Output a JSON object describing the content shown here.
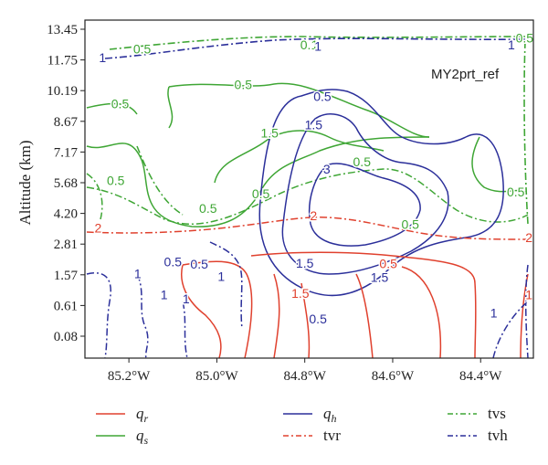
{
  "chart_data": {
    "type": "contour",
    "annotation": "MY2prt_ref",
    "ylabel": "Altitude (km)",
    "xlabel": "",
    "x_ticks": [
      "85.2°W",
      "85.0°W",
      "84.8°W",
      "84.6°W",
      "84.4°W"
    ],
    "x_tick_values": [
      -85.2,
      -85.0,
      -84.8,
      -84.6,
      -84.4
    ],
    "xlim": [
      -85.3,
      -84.28
    ],
    "y_ticks": [
      "13.45",
      "11.75",
      "10.19",
      "8.67",
      "7.17",
      "5.68",
      "4.20",
      "2.81",
      "1.57",
      "0.61",
      "0.08"
    ],
    "y_tick_values": [
      13.45,
      11.75,
      10.19,
      8.67,
      7.17,
      5.68,
      4.2,
      2.81,
      1.57,
      0.61,
      0.08
    ],
    "y_scale": "model levels (unevenly spaced)",
    "colors": {
      "qr": "#e0412e",
      "qs": "#3fa635",
      "qh": "#2b2f9a",
      "tvr": "#e0412e",
      "tvs": "#3fa635",
      "tvh": "#2b2f9a"
    },
    "legend": [
      {
        "key": "qr",
        "label": "q",
        "sub": "r",
        "style": "solid",
        "italic": true
      },
      {
        "key": "qs",
        "label": "q",
        "sub": "s",
        "style": "solid",
        "italic": true
      },
      {
        "key": "qh",
        "label": "q",
        "sub": "h",
        "style": "solid",
        "italic": true
      },
      {
        "key": "tvr",
        "label": "tvr",
        "sub": "",
        "style": "dashdot",
        "italic": false
      },
      {
        "key": "tvs",
        "label": "tvs",
        "sub": "",
        "style": "dashdot",
        "italic": false
      },
      {
        "key": "tvh",
        "label": "tvh",
        "sub": "",
        "style": "dashdot",
        "italic": false
      }
    ],
    "contour_labels": [
      {
        "text": "0.5",
        "x": -85.17,
        "y": 12.35,
        "series": "tvs"
      },
      {
        "text": "0.5",
        "x": -85.22,
        "y": 9.55,
        "series": "tvs"
      },
      {
        "text": "0.5",
        "x": -84.9,
        "y": 5.15,
        "series": "tvs"
      },
      {
        "text": "0.5",
        "x": -85.02,
        "y": 4.45,
        "series": "tvs"
      },
      {
        "text": "0.5",
        "x": -84.67,
        "y": 6.7,
        "series": "tvs"
      },
      {
        "text": "0.5",
        "x": -84.56,
        "y": 3.7,
        "series": "tvs"
      },
      {
        "text": "0.5",
        "x": -84.32,
        "y": 5.25,
        "series": "tvs"
      },
      {
        "text": "0.5",
        "x": -85.23,
        "y": 5.8,
        "series": "tvs"
      },
      {
        "text": "0.5",
        "x": -84.94,
        "y": 10.5,
        "series": "qs"
      },
      {
        "text": "1.5",
        "x": -84.88,
        "y": 8.1,
        "series": "qs"
      },
      {
        "text": "0.1",
        "x": -84.79,
        "y": 12.6,
        "series": "tvs"
      },
      {
        "text": "1",
        "x": -84.77,
        "y": 12.52,
        "series": "tvh"
      },
      {
        "text": "1",
        "x": -85.26,
        "y": 11.88,
        "series": "tvh"
      },
      {
        "text": "1",
        "x": -84.33,
        "y": 12.6,
        "series": "tvh"
      },
      {
        "text": "0.5",
        "x": -84.3,
        "y": 12.98,
        "series": "tvs"
      },
      {
        "text": "0.5",
        "x": -84.76,
        "y": 9.9,
        "series": "qh"
      },
      {
        "text": "1.5",
        "x": -84.78,
        "y": 8.5,
        "series": "qh"
      },
      {
        "text": "3",
        "x": -84.75,
        "y": 6.35,
        "series": "qh"
      },
      {
        "text": "1.5",
        "x": -84.8,
        "y": 2.05,
        "series": "qh"
      },
      {
        "text": "1.5",
        "x": -84.63,
        "y": 1.5,
        "series": "qh"
      },
      {
        "text": "0.5",
        "x": -84.77,
        "y": 0.38,
        "series": "qh"
      },
      {
        "text": "0.5",
        "x": -85.1,
        "y": 2.1,
        "series": "tvh"
      },
      {
        "text": "0.5",
        "x": -85.04,
        "y": 2.0,
        "series": "tvh"
      },
      {
        "text": "1",
        "x": -85.18,
        "y": 1.62,
        "series": "tvh"
      },
      {
        "text": "1",
        "x": -85.12,
        "y": 0.95,
        "series": "tvh"
      },
      {
        "text": "1",
        "x": -85.07,
        "y": 0.82,
        "series": "tvh"
      },
      {
        "text": "1",
        "x": -84.99,
        "y": 1.52,
        "series": "tvh"
      },
      {
        "text": "1",
        "x": -84.37,
        "y": 0.48,
        "series": "tvh"
      },
      {
        "text": "2",
        "x": -85.27,
        "y": 3.55,
        "series": "tvr"
      },
      {
        "text": "2",
        "x": -84.78,
        "y": 4.1,
        "series": "tvr"
      },
      {
        "text": "2",
        "x": -84.29,
        "y": 3.1,
        "series": "tvr"
      },
      {
        "text": "1.5",
        "x": -84.81,
        "y": 1.0,
        "series": "qr"
      },
      {
        "text": "0.5",
        "x": -84.61,
        "y": 2.02,
        "series": "qr"
      },
      {
        "text": "1",
        "x": -84.29,
        "y": 0.95,
        "series": "tvr"
      }
    ]
  }
}
